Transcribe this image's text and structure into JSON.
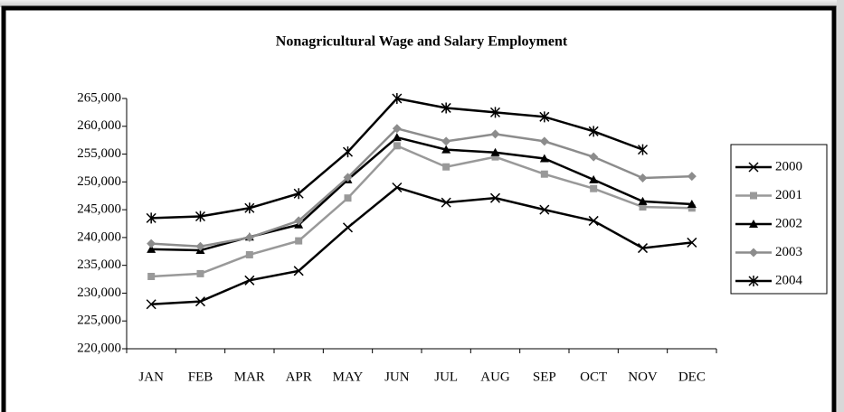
{
  "chart_data": {
    "type": "line",
    "title": "Nonagricultural Wage and Salary Employment",
    "categories": [
      "JAN",
      "FEB",
      "MAR",
      "APR",
      "MAY",
      "JUN",
      "JUL",
      "AUG",
      "SEP",
      "OCT",
      "NOV",
      "DEC"
    ],
    "series": [
      {
        "name": "2000",
        "color": "#000000",
        "marker": "x",
        "values": [
          228000,
          228500,
          232300,
          234000,
          241800,
          249000,
          246300,
          247100,
          245000,
          243000,
          238100,
          239100
        ]
      },
      {
        "name": "2001",
        "color": "#999999",
        "marker": "square",
        "values": [
          233000,
          233500,
          236900,
          239400,
          247100,
          256500,
          252700,
          254500,
          251400,
          248800,
          245500,
          245300
        ]
      },
      {
        "name": "2002",
        "color": "#000000",
        "marker": "triangle",
        "values": [
          237900,
          237700,
          240100,
          242300,
          250400,
          258000,
          255800,
          255300,
          254200,
          250400,
          246500,
          246000
        ]
      },
      {
        "name": "2003",
        "color": "#8c8c8c",
        "marker": "diamond",
        "values": [
          238900,
          238400,
          240000,
          243000,
          250800,
          259600,
          257300,
          258600,
          257300,
          254500,
          250700,
          251000
        ]
      },
      {
        "name": "2004",
        "color": "#000000",
        "marker": "asterisk",
        "values": [
          243500,
          243800,
          245300,
          247900,
          255400,
          265000,
          263300,
          262500,
          261700,
          259100,
          255800,
          null
        ]
      }
    ],
    "ylim": [
      220000,
      265000
    ],
    "yticks": [
      {
        "value": 220000,
        "label": "220,000"
      },
      {
        "value": 225000,
        "label": "225,000"
      },
      {
        "value": 230000,
        "label": "230,000"
      },
      {
        "value": 235000,
        "label": "235,000"
      },
      {
        "value": 240000,
        "label": "240,000"
      },
      {
        "value": 245000,
        "label": "245,000"
      },
      {
        "value": 250000,
        "label": "250,000"
      },
      {
        "value": 255000,
        "label": "255,000"
      },
      {
        "value": 260000,
        "label": "260,000"
      },
      {
        "value": 265000,
        "label": "265,000"
      }
    ],
    "grid": false,
    "legend": "right"
  }
}
